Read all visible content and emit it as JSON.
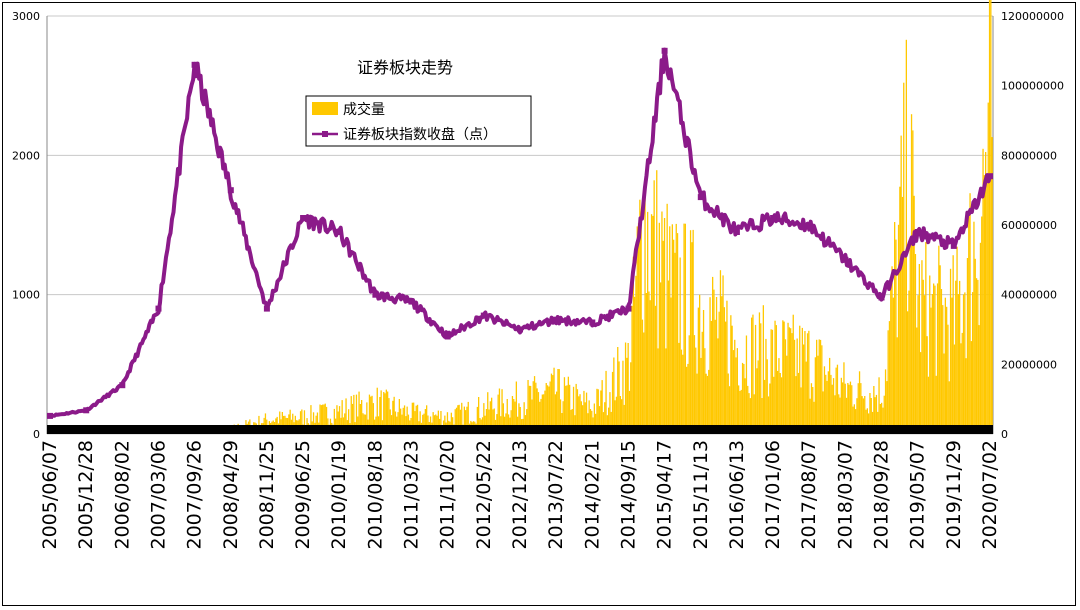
{
  "chart_data": {
    "type": "bar+line",
    "title": "证券板块走势",
    "left_axis": {
      "ylim": [
        0,
        3000
      ],
      "ticks": [
        "0",
        "1000",
        "2000",
        "3000"
      ]
    },
    "right_axis": {
      "ylim": [
        0,
        120000000
      ],
      "ticks": [
        "0",
        "20000000",
        "40000000",
        "60000000",
        "80000000",
        "100000000",
        "120000000"
      ]
    },
    "x_tick_labels": [
      "2005/06/07",
      "2005/12/28",
      "2006/08/02",
      "2007/03/06",
      "2007/09/26",
      "2008/04/29",
      "2008/11/25",
      "2009/06/25",
      "2010/01/19",
      "2010/08/18",
      "2011/03/23",
      "2011/10/20",
      "2012/05/22",
      "2012/12/13",
      "2013/07/22",
      "2014/02/21",
      "2014/09/15",
      "2015/04/17",
      "2015/11/13",
      "2016/06/13",
      "2017/01/06",
      "2017/08/07",
      "2018/03/07",
      "2018/09/28",
      "2019/05/07",
      "2019/11/29",
      "2020/07/02"
    ],
    "legend_position": "top-center",
    "grid": "horizontal",
    "series": [
      {
        "name": "成交量",
        "type": "bar",
        "axis": "right",
        "color": "#FFC800",
        "x": [
          "2005/06/07",
          "2005/12/28",
          "2006/08/02",
          "2007/03/06",
          "2007/09/26",
          "2008/04/29",
          "2008/11/25",
          "2009/06/25",
          "2010/01/19",
          "2010/08/18",
          "2011/03/23",
          "2011/10/20",
          "2012/05/22",
          "2012/12/13",
          "2013/07/22",
          "2014/02/21",
          "2014/09/15",
          "2014/12/05",
          "2015/04/17",
          "2015/06/12",
          "2015/11/13",
          "2016/06/13",
          "2017/01/06",
          "2017/08/07",
          "2018/03/07",
          "2018/09/28",
          "2019/03/08",
          "2019/05/07",
          "2019/11/29",
          "2020/04/15",
          "2020/07/02"
        ],
        "values": [
          0,
          0,
          0,
          0,
          0,
          2000000,
          5000000,
          6000000,
          8000000,
          11000000,
          7000000,
          6000000,
          9000000,
          12000000,
          15000000,
          9000000,
          25000000,
          75000000,
          55000000,
          50000000,
          45000000,
          30000000,
          28000000,
          26000000,
          16000000,
          14000000,
          94000000,
          45000000,
          40000000,
          70000000,
          108000000
        ]
      },
      {
        "name": "证券板块指数收盘（点）",
        "type": "line",
        "axis": "left",
        "color": "#8B1A89",
        "x": [
          "2005/06/07",
          "2005/12/28",
          "2006/08/02",
          "2007/03/06",
          "2007/09/26",
          "2008/04/29",
          "2008/11/25",
          "2009/06/25",
          "2010/01/19",
          "2010/08/18",
          "2011/03/23",
          "2011/10/20",
          "2012/05/22",
          "2012/12/13",
          "2013/07/22",
          "2014/02/21",
          "2014/09/15",
          "2015/04/17",
          "2015/11/13",
          "2016/06/13",
          "2017/01/06",
          "2017/08/07",
          "2018/03/07",
          "2018/09/28",
          "2019/05/07",
          "2019/11/29",
          "2020/07/02"
        ],
        "values": [
          130,
          170,
          350,
          900,
          2650,
          1750,
          900,
          1550,
          1450,
          1000,
          950,
          700,
          850,
          750,
          820,
          800,
          900,
          2750,
          1700,
          1450,
          1550,
          1500,
          1250,
          980,
          1450,
          1350,
          1850
        ]
      }
    ]
  }
}
